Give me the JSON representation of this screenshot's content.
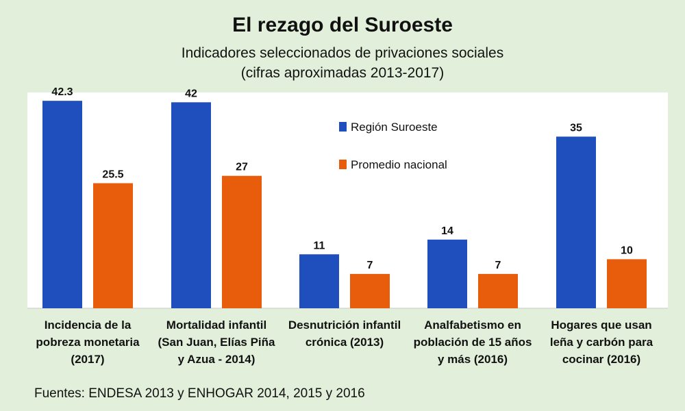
{
  "title": "El rezago del Suroeste",
  "subtitle_line1": "Indicadores seleccionados de privaciones sociales",
  "subtitle_line2": "(cifras aproximadas 2013-2017)",
  "source": "Fuentes: ENDESA 2013 y ENHOGAR 2014, 2015 y 2016",
  "colors": {
    "suroeste": "#1f4fbd",
    "nacional": "#e85d0c"
  },
  "chart_data": {
    "type": "bar",
    "title": "El rezago del Suroeste",
    "subtitle": "Indicadores seleccionados de privaciones sociales (cifras aproximadas 2013-2017)",
    "categories": [
      [
        "Incidencia de la",
        "pobreza monetaria",
        "(2017)"
      ],
      [
        "Mortalidad infantil",
        "(San Juan, Elías Piña",
        "y Azua - 2014)"
      ],
      [
        "Desnutrición infantil",
        "crónica (2013)"
      ],
      [
        "Analfabetismo en",
        "población de 15 años",
        "y más (2016)"
      ],
      [
        "Hogares que usan",
        "leña y carbón para",
        "cocinar (2016)"
      ]
    ],
    "series": [
      {
        "name": "Región Suroeste",
        "values": [
          42.3,
          42,
          11,
          14,
          35
        ],
        "labels": [
          "42.3",
          "42",
          "11",
          "14",
          "35"
        ]
      },
      {
        "name": "Promedio nacional",
        "values": [
          25.5,
          27,
          7,
          7,
          10
        ],
        "labels": [
          "25.5",
          "27",
          "7",
          "7",
          "10"
        ]
      }
    ],
    "ylim": [
      0,
      44
    ],
    "grid": false,
    "legend_position": "top-center-right"
  }
}
